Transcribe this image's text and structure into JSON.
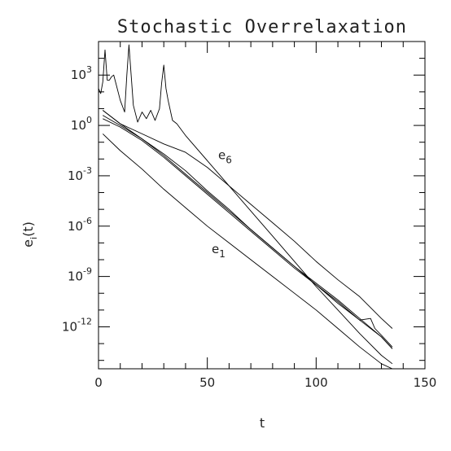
{
  "chart_data": {
    "type": "line",
    "title": "Stochastic Overrelaxation",
    "xlabel": "t",
    "ylabel": "e_i(t)",
    "xlim": [
      0,
      150
    ],
    "ylim_log10": [
      -14.5,
      5
    ],
    "yscale": "log",
    "x_ticks": [
      0,
      50,
      100,
      150
    ],
    "x_tick_labels": [
      "0",
      "50",
      "100",
      "150"
    ],
    "y_tick_exponents": [
      3,
      0,
      -3,
      -6,
      -9,
      -12
    ],
    "y_tick_labels": [
      {
        "base": "10",
        "exp": "3"
      },
      {
        "base": "10",
        "exp": "0"
      },
      {
        "base": "10",
        "exp": "-3"
      },
      {
        "base": "10",
        "exp": "-6"
      },
      {
        "base": "10",
        "exp": "-9"
      },
      {
        "base": "10",
        "exp": "-12"
      }
    ],
    "annotations": [
      {
        "base": "e",
        "sub": "6",
        "x": 55,
        "log10_y": -2.0
      },
      {
        "base": "e",
        "sub": "1",
        "x": 52,
        "log10_y": -7.6
      }
    ],
    "series": [
      {
        "x": [
          0,
          1,
          2,
          3,
          4,
          5,
          6,
          7,
          8,
          10,
          12,
          13,
          14,
          15,
          16,
          18,
          20,
          22,
          24,
          26,
          28,
          29,
          30,
          31,
          32,
          34,
          36,
          40,
          50,
          60,
          70,
          80,
          90,
          100,
          110,
          120,
          130,
          135
        ],
        "log10_y": [
          2.2,
          1.9,
          2.6,
          4.5,
          2.7,
          2.7,
          2.9,
          3.0,
          2.5,
          1.5,
          0.8,
          3.0,
          4.8,
          3.0,
          1.2,
          0.2,
          0.8,
          0.4,
          0.9,
          0.3,
          1.0,
          2.5,
          3.6,
          2.2,
          1.5,
          0.3,
          0.1,
          -0.6,
          -2.1,
          -3.6,
          -5.1,
          -6.6,
          -8.1,
          -9.6,
          -11.0,
          -12.4,
          -13.7,
          -14.2
        ]
      },
      {
        "x": [
          2,
          10,
          20,
          30,
          40,
          50,
          60,
          70,
          80,
          90,
          100,
          110,
          120,
          130,
          135
        ],
        "log10_y": [
          0.6,
          0.0,
          -0.8,
          -1.7,
          -2.7,
          -3.9,
          -5.0,
          -6.2,
          -7.3,
          -8.4,
          -9.4,
          -10.4,
          -11.5,
          -12.6,
          -13.3
        ]
      },
      {
        "x": [
          2,
          10,
          20,
          30,
          40,
          50,
          60,
          70,
          80,
          90,
          100,
          110,
          120,
          125,
          127,
          130,
          135
        ],
        "log10_y": [
          0.4,
          -0.1,
          -0.9,
          -1.9,
          -3.0,
          -4.1,
          -5.2,
          -6.3,
          -7.4,
          -8.5,
          -9.5,
          -10.5,
          -11.6,
          -11.5,
          -12.1,
          -12.5,
          -13.2
        ]
      },
      {
        "x": [
          2,
          10,
          20,
          30,
          40,
          50,
          60,
          70,
          80,
          90,
          100,
          110,
          120,
          130,
          135
        ],
        "log10_y": [
          0.9,
          0.1,
          -0.8,
          -1.8,
          -2.9,
          -4.0,
          -5.1,
          -6.2,
          -7.3,
          -8.4,
          -9.5,
          -10.6,
          -11.6,
          -12.6,
          -13.3
        ]
      },
      {
        "x": [
          2,
          10,
          20,
          30,
          40,
          50,
          60,
          70,
          80,
          90,
          100,
          110,
          120,
          130,
          135
        ],
        "log10_y": [
          0.9,
          0.1,
          -0.5,
          -1.1,
          -1.6,
          -2.5,
          -3.6,
          -4.7,
          -5.8,
          -6.9,
          -8.1,
          -9.2,
          -10.2,
          -11.5,
          -12.1
        ]
      },
      {
        "x": [
          2,
          10,
          20,
          30,
          40,
          50,
          60,
          70,
          80,
          90,
          100,
          110,
          120,
          130,
          135
        ],
        "log10_y": [
          -0.5,
          -1.5,
          -2.6,
          -3.8,
          -4.9,
          -6.0,
          -7.0,
          -8.0,
          -9.0,
          -10.0,
          -11.0,
          -12.1,
          -13.2,
          -14.2,
          -14.5
        ]
      }
    ]
  }
}
